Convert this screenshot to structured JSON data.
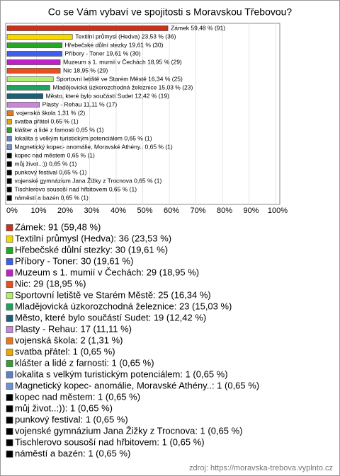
{
  "chart_data": {
    "type": "hbar",
    "title": "Co se Vám vybaví ve spojitosti s Moravskou Třebovou?",
    "categories": [
      "Zámek",
      "Textilní průmysl (Hedva)",
      "Hřebečské důlní stezky",
      "Příbory - Toner",
      "Muzeum s 1. mumií v Čechách",
      "Nic",
      "Sportovní letiště ve Starém Městě",
      "Mladějovická úzkorozchodná železnice",
      "Město, které bylo součástí Sudet",
      "Plasty - Rehau",
      "vojenská škola",
      "svatba přátel",
      "klášter a lidé z farnosti",
      "lokalita s velkým turistickým potenciálem",
      "Magnetický kopec- anomálie, Moravské Athény..",
      "kopec nad městem",
      "můj život..:))",
      "punkový festival",
      "vojenské gymnázium Jana Žižky z Trocnova",
      "Tischlerovo sousoší nad hřbitovem",
      "náměstí a bazén"
    ],
    "values": [
      59.48,
      23.53,
      19.61,
      19.61,
      18.95,
      18.95,
      16.34,
      15.03,
      12.42,
      11.11,
      1.31,
      0.65,
      0.65,
      0.65,
      0.65,
      0.65,
      0.65,
      0.65,
      0.65,
      0.65,
      0.65
    ],
    "value_labels": [
      "Zámek 59,48 % (91)",
      "Textilní průmysl (Hedva) 23,53 % (36)",
      "Hřebečské důlní stezky 19,61 % (30)",
      "Příbory - Toner 19,61 % (30)",
      "Muzeum s 1. mumií v Čechách 18,95 % (29)",
      "Nic 18,95 % (29)",
      "Sportovní letiště ve Starém Městě 16,34 % (25)",
      "Mladějovická úzkorozchodná železnice 15,03 % (23)",
      "Město, které bylo součástí Sudet 12,42 % (19)",
      "Plasty - Rehau 11,11 % (17)",
      "vojenská škola 1,31 % (2)",
      "svatba přátel 0,65 % (1)",
      "klášter a lidé z farnosti 0,65 % (1)",
      "lokalita s velkým turistickým potenciálem 0,65 % (1)",
      "Magnetický kopec- anomálie, Moravské Athény.. 0,65 % (1)",
      "kopec nad městem 0,65 % (1)",
      "můj život..:)) 0,65 % (1)",
      "punkový festival 0,65 % (1)",
      "vojenské gymnázium Jana Žižky z Trocnova 0,65 % (1)",
      "Tischlerovo sousoší nad hřbitovem 0,65 % (1)",
      "náměstí a bazén 0,65 % (1)"
    ],
    "legend_labels": [
      "Zámek: 91 (59,48 %)",
      "Textilní průmysl (Hedva): 36 (23,53 %)",
      "Hřebečské důlní stezky: 30 (19,61 %)",
      "Příbory - Toner: 30 (19,61 %)",
      "Muzeum s 1. mumií v Čechách: 29 (18,95 %)",
      "Nic: 29 (18,95 %)",
      "Sportovní letiště ve Starém Městě: 25 (16,34 %)",
      "Mladějovická úzkorozchodná železnice: 23 (15,03 %)",
      "Město, které bylo součástí Sudet: 19 (12,42 %)",
      "Plasty - Rehau: 17 (11,11 %)",
      "vojenská škola: 2 (1,31 %)",
      "svatba přátel: 1 (0,65 %)",
      "klášter a lidé z farnosti: 1 (0,65 %)",
      "lokalita s velkým turistickým potenciálem: 1 (0,65 %)",
      "Magnetický kopec- anomálie, Moravské Athény..: 1 (0,65 %)",
      "kopec nad městem: 1 (0,65 %)",
      "můj život..:)): 1 (0,65 %)",
      "punkový festival: 1 (0,65 %)",
      "vojenské gymnázium Jana Žižky z Trocnova: 1 (0,65 %)",
      "Tischlerovo sousoší nad hřbitovem: 1 (0,65 %)",
      "náměstí a bazén: 1 (0,65 %)"
    ],
    "colors": [
      "#c8321e",
      "#f5d800",
      "#22a822",
      "#3e5ef0",
      "#c020c8",
      "#e8501e",
      "#b0ee70",
      "#20a060",
      "#1c6078",
      "#c888d8",
      "#e87820",
      "#e8a800",
      "#30a030",
      "#6080c8",
      "#7090d8",
      "#000000",
      "#000000",
      "#000000",
      "#000000",
      "#000000",
      "#000000"
    ],
    "xlim": [
      0,
      100
    ],
    "xticks": [
      {
        "value": 0,
        "label": "0%"
      },
      {
        "value": 10,
        "label": "10%"
      },
      {
        "value": 20,
        "label": "20%"
      },
      {
        "value": 30,
        "label": "30%"
      },
      {
        "value": 40,
        "label": "40%"
      },
      {
        "value": 50,
        "label": "50%"
      },
      {
        "value": 60,
        "label": "60%"
      },
      {
        "value": 70,
        "label": "70%"
      },
      {
        "value": 80,
        "label": "80%"
      },
      {
        "value": 90,
        "label": "90%"
      },
      {
        "value": 100,
        "label": "100%"
      }
    ],
    "grid": true,
    "source": "zdroj: https://moravska-trebova.vyplnto.cz"
  }
}
